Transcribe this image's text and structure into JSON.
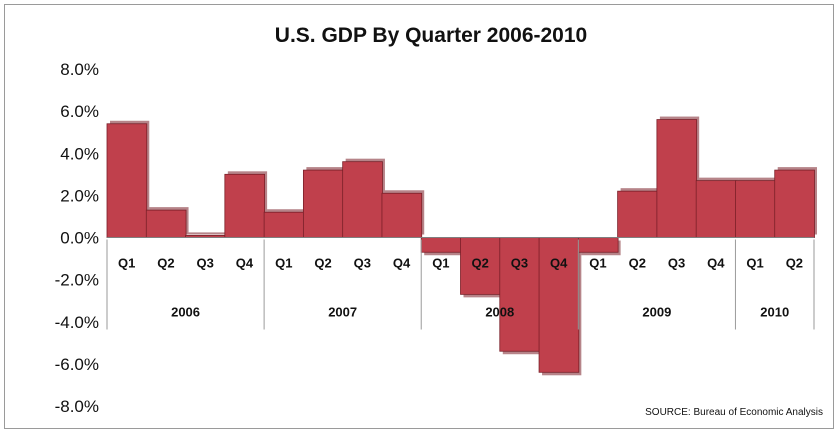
{
  "chart_data": {
    "type": "area",
    "title": "U.S. GDP By Quarter 2006-2010",
    "source": "SOURCE: Bureau of Economic Analysis",
    "ylim": [
      -8.0,
      8.0
    ],
    "y_ticks": [
      "8.0%",
      "6.0%",
      "4.0%",
      "2.0%",
      "0.0%",
      "-2.0%",
      "-4.0%",
      "-6.0%",
      "-8.0%"
    ],
    "y_tick_values": [
      8,
      6,
      4,
      2,
      0,
      -2,
      -4,
      -6,
      -8
    ],
    "categories": [
      "Q1",
      "Q2",
      "Q3",
      "Q4",
      "Q1",
      "Q2",
      "Q3",
      "Q4",
      "Q1",
      "Q2",
      "Q3",
      "Q4",
      "Q1",
      "Q2",
      "Q3",
      "Q4",
      "Q1",
      "Q2"
    ],
    "years": [
      {
        "label": "2006",
        "quarters": 4
      },
      {
        "label": "2007",
        "quarters": 4
      },
      {
        "label": "2008",
        "quarters": 4
      },
      {
        "label": "2009",
        "quarters": 4
      },
      {
        "label": "2010",
        "quarters": 2
      }
    ],
    "values": [
      5.4,
      1.3,
      0.1,
      3.0,
      1.2,
      3.2,
      3.6,
      2.1,
      -0.7,
      -2.7,
      -5.4,
      -6.4,
      -0.7,
      2.2,
      5.6,
      2.7,
      2.7,
      3.2
    ],
    "series_color": "#c0404c",
    "series_edge_color": "#7a1f28",
    "grid": false,
    "legend": "none"
  }
}
